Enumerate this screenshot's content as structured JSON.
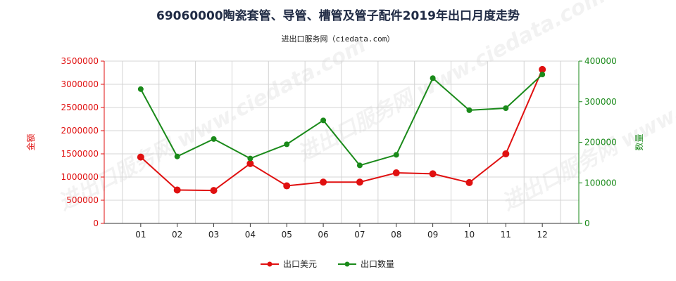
{
  "chart_data": {
    "type": "line",
    "title": "69060000陶瓷套管、导管、槽管及管子配件2019年出口月度走势",
    "subtitle": "进出口服务网（ciedata.com）",
    "categories": [
      "01",
      "02",
      "03",
      "04",
      "05",
      "06",
      "07",
      "08",
      "09",
      "10",
      "11",
      "12"
    ],
    "series": [
      {
        "name": "出口美元",
        "axis": "left",
        "color": "#e01010",
        "values": [
          1430000,
          720000,
          710000,
          1290000,
          810000,
          890000,
          890000,
          1090000,
          1070000,
          880000,
          1500000,
          3320000
        ]
      },
      {
        "name": "出口数量",
        "axis": "right",
        "color": "#1a8a1a",
        "values": [
          331000,
          165000,
          208000,
          160000,
          195000,
          254000,
          143000,
          169000,
          358000,
          279000,
          284000,
          367000
        ]
      }
    ],
    "ylabel_left": "金额",
    "ylabel_right": "数量",
    "ylim_left": [
      0,
      3500000
    ],
    "yticks_left": [
      0,
      500000,
      1000000,
      1500000,
      2000000,
      2500000,
      3000000,
      3500000
    ],
    "ylim_right": [
      0,
      400000
    ],
    "yticks_right": [
      0,
      100000,
      200000,
      300000,
      400000
    ],
    "left_axis_color": "#e01010",
    "right_axis_color": "#1a8a1a",
    "grid": true,
    "legend_position": "bottom-center",
    "watermark": "进出口服务网 www.ciedata.com"
  }
}
